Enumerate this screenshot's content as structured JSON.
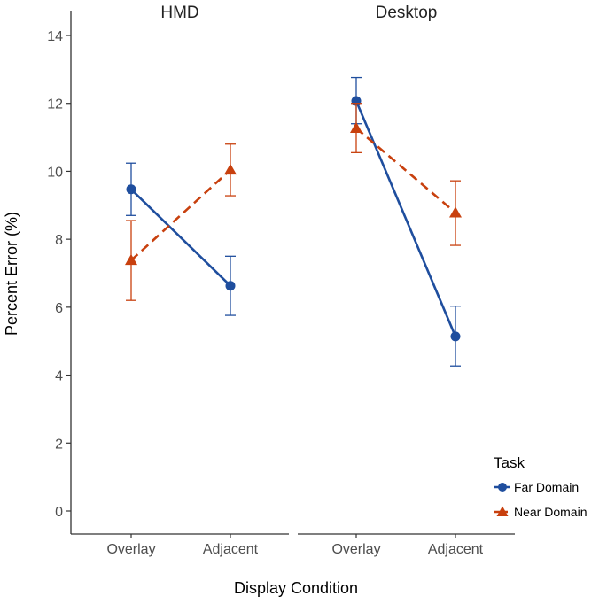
{
  "chart_data": {
    "type": "line",
    "xlabel": "Display Condition",
    "ylabel": "Percent Error (%)",
    "ylim": [
      0,
      14
    ],
    "yticks": [
      0,
      2,
      4,
      6,
      8,
      10,
      12,
      14
    ],
    "categories": [
      "Overlay",
      "Adjacent"
    ],
    "grid": false,
    "legend": {
      "title": "Task",
      "position": "right-bottom",
      "entries": [
        "Far Domain",
        "Near Domain"
      ]
    },
    "series_style": [
      {
        "name": "Far Domain",
        "color": "#1f4e9e",
        "marker": "circle",
        "line": "solid"
      },
      {
        "name": "Near Domain",
        "color": "#c8400e",
        "marker": "triangle",
        "line": "dashed"
      }
    ],
    "panels": [
      {
        "title": "HMD",
        "series": [
          {
            "name": "Far Domain",
            "values": [
              9.47,
              6.63
            ],
            "err_low": [
              8.7,
              5.76
            ],
            "err_high": [
              10.24,
              7.5
            ]
          },
          {
            "name": "Near Domain",
            "values": [
              7.38,
              10.04
            ],
            "err_low": [
              6.2,
              9.28
            ],
            "err_high": [
              8.55,
              10.8
            ]
          }
        ]
      },
      {
        "title": "Desktop",
        "series": [
          {
            "name": "Far Domain",
            "values": [
              12.07,
              5.14
            ],
            "err_low": [
              11.4,
              4.27
            ],
            "err_high": [
              12.76,
              6.03
            ]
          },
          {
            "name": "Near Domain",
            "values": [
              11.27,
              8.78
            ],
            "err_low": [
              10.55,
              7.82
            ],
            "err_high": [
              12.0,
              9.72
            ]
          }
        ]
      }
    ]
  }
}
